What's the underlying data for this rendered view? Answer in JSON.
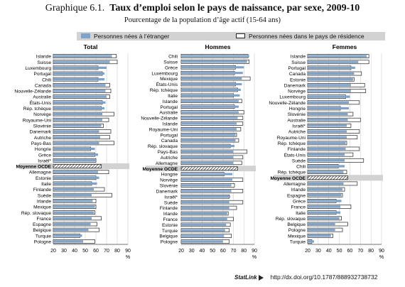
{
  "title": {
    "label": "Graphique 6.1.",
    "text": "Taux d’emploi selon le pays de naissance, par sexe, 2009-10"
  },
  "subtitle": "Pourcentage de la population d’âge actif (15-64 ans)",
  "legend": {
    "foreign": "Personnes nées à l’étranger",
    "native": "Personnes nées dans le pays de résidence"
  },
  "colors": {
    "foreign": "#7ea2c8",
    "native": "#ffffff",
    "grid": "#cfcfcf",
    "highlight": "#d2d2d2"
  },
  "footer": {
    "statlink": "StatLink",
    "url": "http://dx.doi.org/10.1787/888932738732"
  },
  "chart_data": [
    {
      "type": "bar",
      "orientation": "horizontal",
      "title": "Total",
      "unit": "%",
      "xlim": [
        20,
        90
      ],
      "ticks": [
        20,
        30,
        40,
        50,
        60,
        70,
        80,
        90
      ],
      "highlight": "Moyenne OCDE",
      "categories": [
        "Islande",
        "Suisse",
        "Luxembourg",
        "Portugal",
        "Chili",
        "Canada",
        "Nouvelle-Zélande",
        "Australie",
        "États-Unis",
        "Rép. tchèque",
        "Norvège",
        "Royaume-Uni",
        "Slovénie",
        "Danemark",
        "Autriche",
        "Pays-Bas",
        "Hongrie",
        "Grèce",
        "Israël*",
        "Moyenne OCDE",
        "Allemagne",
        "Estonie",
        "Italie",
        "Finlande",
        "Suède",
        "Irlande",
        "Mexique",
        "Rép. slovaque",
        "France",
        "Espagne",
        "Belgique",
        "Turquie",
        "Pologne"
      ],
      "series": [
        {
          "name": "Personnes nées à l’étranger",
          "values": [
            75,
            73,
            70,
            68,
            68,
            69,
            69,
            70,
            69,
            68,
            66,
            66,
            65,
            63,
            64,
            63,
            59,
            62,
            60,
            63,
            62,
            63,
            61,
            58,
            56,
            57,
            59,
            58,
            56,
            55,
            53,
            47,
            48
          ]
        },
        {
          "name": "Personnes nées dans le pays de résidence",
          "values": [
            79,
            80,
            62,
            66,
            62,
            73,
            74,
            73,
            66,
            65,
            77,
            72,
            67,
            74,
            73,
            77,
            55,
            59,
            60,
            65,
            72,
            60,
            56,
            68,
            75,
            60,
            60,
            59,
            65,
            61,
            63,
            45,
            59
          ]
        }
      ]
    },
    {
      "type": "bar",
      "orientation": "horizontal",
      "title": "Hommes",
      "unit": "%",
      "xlim": [
        20,
        90
      ],
      "ticks": [
        20,
        30,
        40,
        50,
        60,
        70,
        80,
        90
      ],
      "highlight": "Moyenne OCDE",
      "categories": [
        "Chili",
        "Suisse",
        "Grèce",
        "Luxembourg",
        "Mexique",
        "États-Unis",
        "Rép. tchèque",
        "Italie",
        "Islande",
        "Portugal",
        "Australie",
        "Nouvelle-Zélande",
        "Islande",
        "Royaume-Uni",
        "Portugal",
        "Canada",
        "Rép. slovaque",
        "Pays-Bas",
        "Autriche",
        "Allemagne",
        "Moyenne OCDE",
        "Hongrie",
        "Norvège",
        "Slovénie",
        "Danemark",
        "Israël*",
        "Suède",
        "Finlande",
        "Irlande",
        "France",
        "Estonie",
        "Turquie",
        "Belgique",
        "Pologne"
      ],
      "series": [
        {
          "name": "Personnes nées à l’étranger",
          "values": [
            85,
            83,
            80,
            79,
            78,
            78,
            77,
            76,
            75,
            75,
            75,
            74,
            73,
            73,
            72,
            72,
            71,
            70,
            70,
            70,
            70,
            69,
            69,
            68,
            68,
            67,
            66,
            66,
            64,
            64,
            63,
            62,
            61,
            60
          ]
        },
        {
          "name": "Personnes nées dans le pays de résidence",
          "values": [
            84,
            85,
            72,
            71,
            86,
            72,
            74,
            70,
            78,
            71,
            80,
            79,
            79,
            77,
            73,
            75,
            67,
            83,
            79,
            78,
            74,
            61,
            79,
            71,
            79,
            66,
            79,
            73,
            65,
            70,
            67,
            66,
            68,
            66
          ]
        }
      ]
    },
    {
      "type": "bar",
      "orientation": "horizontal",
      "title": "Femmes",
      "unit": "%",
      "xlim": [
        20,
        90
      ],
      "ticks": [
        20,
        30,
        40,
        50,
        60,
        70,
        80,
        90
      ],
      "highlight": "Moyenne OCDE",
      "categories": [
        "Islande",
        "Suisse",
        "Portugal",
        "Canada",
        "Estonie",
        "Danemark",
        "Norvège",
        "Luxembourg",
        "Nouvelle-Zélande",
        "Hongrie",
        "Slovénie",
        "Australie",
        "Israël*",
        "Autriche",
        "Royaume-Uni",
        "Rép. tchèque",
        "Finlande",
        "États-Unis",
        "Suède",
        "Chili",
        "Rép. tchèque",
        "Moyenne OCDE",
        "Allemagne",
        "Irlande",
        "Espagne",
        "Grèce",
        "France",
        "Italie",
        "Rép. slovaque",
        "Belgique",
        "Pologne",
        "Mexique",
        "Turquie"
      ],
      "series": [
        {
          "name": "Personnes nées à l’étranger",
          "values": [
            76,
            68,
            65,
            64,
            63,
            61,
            61,
            60,
            59,
            59,
            58,
            58,
            57,
            57,
            57,
            56,
            56,
            55,
            55,
            55,
            54,
            54,
            54,
            53,
            52,
            52,
            51,
            51,
            50,
            46,
            46,
            42,
            26
          ]
        },
        {
          "name": "Personnes nées dans le pays de résidence",
          "values": [
            78,
            78,
            61,
            71,
            64,
            74,
            75,
            56,
            69,
            51,
            63,
            70,
            61,
            69,
            67,
            57,
            69,
            63,
            73,
            49,
            57,
            58,
            67,
            55,
            53,
            47,
            61,
            47,
            52,
            58,
            53,
            44,
            24
          ]
        }
      ]
    }
  ]
}
